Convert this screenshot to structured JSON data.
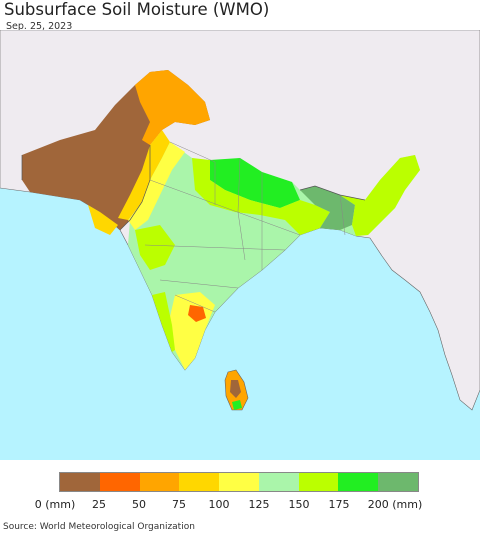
{
  "title": "Subsurface Soil Moisture (WMO)",
  "date": "Sep. 25, 2023",
  "legend": {
    "colors": [
      "#a0663a",
      "#ff6600",
      "#ffa500",
      "#ffd700",
      "#ffff44",
      "#aaf5aa",
      "#bbff00",
      "#22ee22",
      "#6db86d"
    ],
    "labels": [
      "0 (mm)",
      "25",
      "50",
      "75",
      "100",
      "125",
      "150",
      "175",
      "200 (mm)"
    ]
  },
  "source": "Source: World Meteorological Organization"
}
